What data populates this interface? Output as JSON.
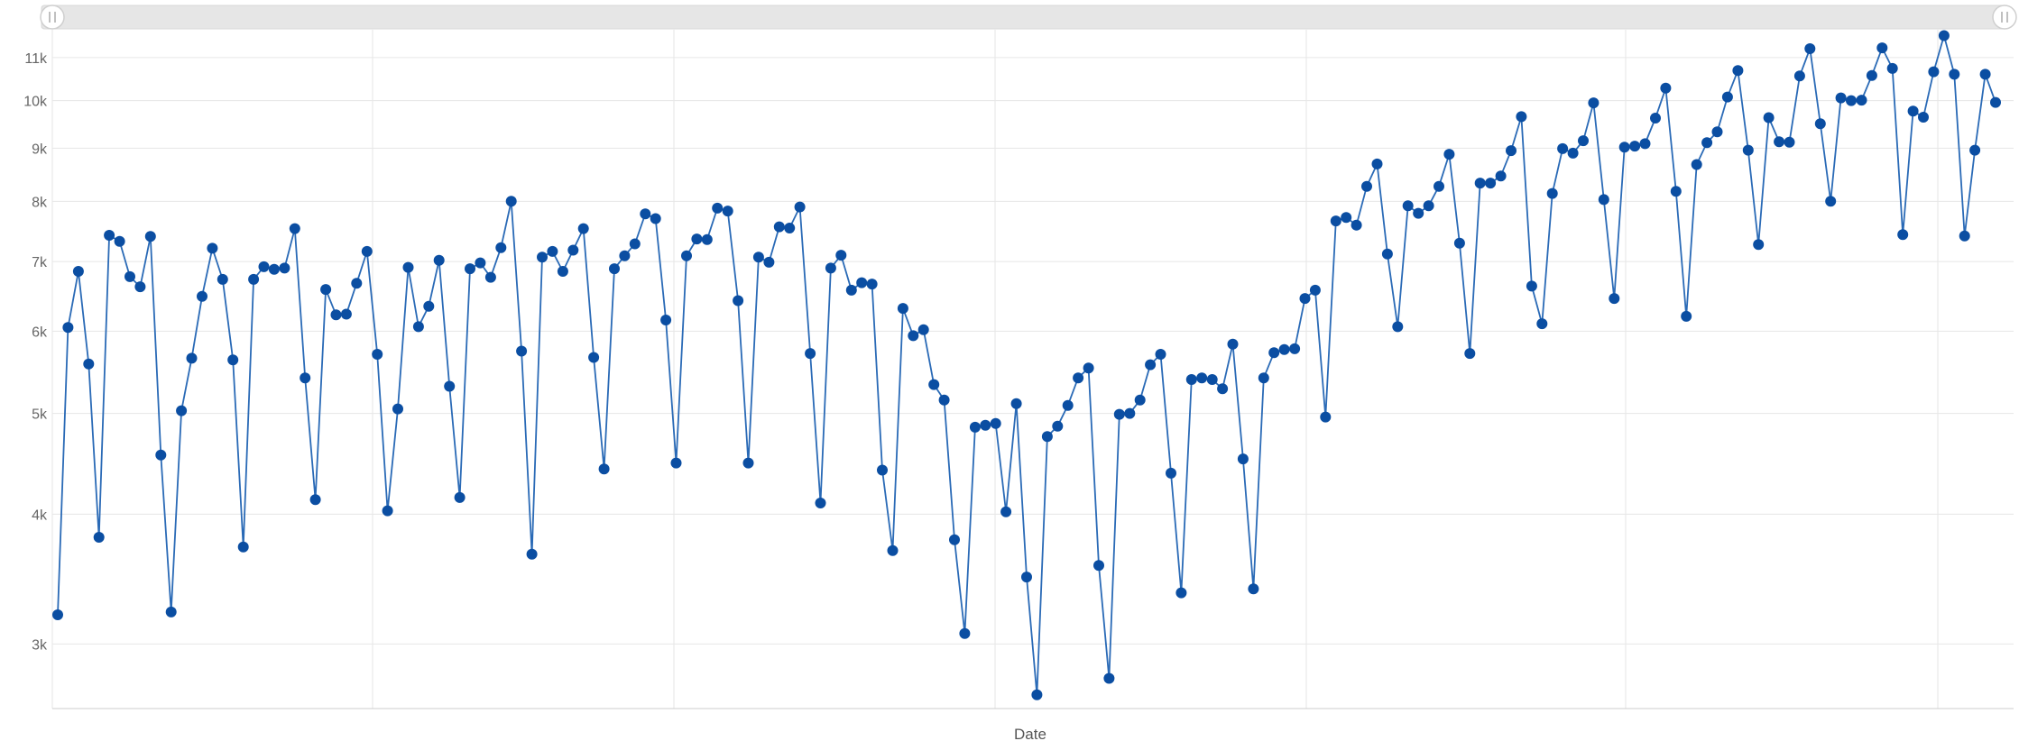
{
  "chart_data": {
    "type": "line",
    "xlabel": "Date",
    "ylabel": "",
    "yscale": "log",
    "ylim": [
      2600,
      11700
    ],
    "yticks": [
      3000,
      4000,
      5000,
      6000,
      7000,
      8000,
      9000,
      10000,
      11000
    ],
    "ytick_labels": [
      "3k",
      "4k",
      "5k",
      "6k",
      "7k",
      "8k",
      "9k",
      "10k",
      "11k"
    ],
    "grid": true,
    "legend": "none",
    "line_color": "#2a6ab6",
    "marker_color": "#0b4ea2",
    "series": [
      {
        "values": [
          3200,
          6050,
          6850,
          5580,
          3800,
          7420,
          7320,
          6770,
          6620,
          7400,
          4560,
          3220,
          5030,
          5650,
          6480,
          7210,
          6730,
          5630,
          3720,
          6730,
          6920,
          6880,
          6900,
          7530,
          5410,
          4130,
          6580,
          6220,
          6230,
          6670,
          7160,
          5700,
          4030,
          5050,
          6910,
          6060,
          6340,
          7020,
          5310,
          4150,
          6890,
          6980,
          6760,
          7220,
          8000,
          5740,
          3660,
          7070,
          7160,
          6850,
          7180,
          7530,
          5660,
          4420,
          6890,
          7090,
          7280,
          7780,
          7700,
          6150,
          4480,
          7090,
          7360,
          7350,
          7880,
          7830,
          6420,
          4480,
          7070,
          6990,
          7560,
          7540,
          7900,
          5710,
          4100,
          6900,
          7100,
          6570,
          6680,
          6660,
          4410,
          3690,
          6310,
          5940,
          6020,
          5330,
          5150,
          3780,
          3070,
          4850,
          4870,
          4890,
          4020,
          5110,
          3480,
          2680,
          4750,
          4860,
          5090,
          5410,
          5530,
          3570,
          2780,
          4990,
          5000,
          5150,
          5570,
          5700,
          4380,
          3360,
          5390,
          5410,
          5390,
          5280,
          5830,
          4520,
          3390,
          5410,
          5720,
          5760,
          5770,
          6450,
          6570,
          4960,
          7660,
          7720,
          7590,
          8270,
          8690,
          7120,
          6060,
          7920,
          7790,
          7920,
          8270,
          8880,
          7290,
          5710,
          8330,
          8330,
          8460,
          8950,
          9650,
          6630,
          6100,
          8140,
          8990,
          8900,
          9150,
          9950,
          8030,
          6450,
          9020,
          9040,
          9090,
          9620,
          10280,
          8180,
          6200,
          8680,
          9110,
          9330,
          10080,
          10690,
          8960,
          7270,
          9630,
          9130,
          9120,
          10560,
          11220,
          9500,
          8000,
          10060,
          10000,
          10010,
          10570,
          11240,
          10740,
          7430,
          9770,
          9640,
          10660,
          11550,
          10600,
          7410,
          8960,
          10600,
          9960
        ]
      }
    ]
  }
}
